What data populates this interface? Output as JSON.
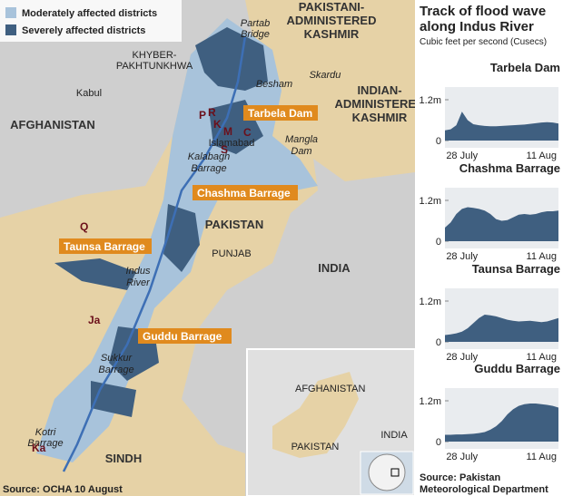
{
  "map": {
    "legend": [
      "Moderately affected districts",
      "Severely affected districts"
    ],
    "labels": [
      "PAKISTANI-",
      "ADMINISTERED",
      "KASHMIR",
      "Partab",
      "Bridge",
      "KHYBER-",
      "PAKHTUNKHWA",
      "Skardu",
      "Kabul",
      "Besham",
      "AFGHANISTAN",
      "INDIAN-",
      "ADMINISTERED",
      "KASHMIR",
      "Islamabad",
      "Mangla",
      "Dam",
      "Kalabagh",
      "Barrage",
      "PAKISTAN",
      "PUNJAB",
      "INDIA",
      "Indus",
      "River",
      "Sukkur",
      "Barrage",
      "Kotri",
      "Barrage",
      "SINDH"
    ],
    "places": [
      "P",
      "R",
      "K",
      "M",
      "C",
      "S",
      "Q",
      "Ja",
      "Ka"
    ],
    "barrages": [
      "Tarbela Dam",
      "Chashma Barrage",
      "Taunsa Barrage",
      "Guddu Barrage"
    ],
    "inset": [
      "AFGHANISTAN",
      "INDIA",
      "PAKISTAN"
    ],
    "source": "Source: OCHA 10 August"
  },
  "panel": {
    "title": [
      "Track of flood wave",
      "along Indus River"
    ],
    "subtitle": "Cubic feet per second (Cusecs)",
    "source": [
      "Source: Pakistan",
      "Meteorological Department"
    ]
  },
  "chart_data": [
    {
      "type": "area",
      "title": "Tarbela Dam",
      "color": "#3f5f80",
      "categories": [
        null,
        null,
        null,
        "28 July",
        null,
        null,
        null,
        null,
        null,
        null,
        null,
        null,
        null,
        null,
        null,
        null,
        null,
        "11 Aug",
        null,
        null,
        null
      ],
      "values": [
        300000,
        330000,
        450000,
        850000,
        600000,
        480000,
        450000,
        430000,
        420000,
        420000,
        430000,
        440000,
        450000,
        460000,
        470000,
        490000,
        510000,
        530000,
        540000,
        530000,
        500000
      ],
      "ylim": [
        0,
        1200000
      ],
      "yticks": [
        0,
        {
          "value": 1200000,
          "label": "1.2m"
        }
      ]
    },
    {
      "type": "area",
      "title": "Chashma Barrage",
      "color": "#3f5f80",
      "categories": [
        null,
        null,
        null,
        "28 July",
        null,
        null,
        null,
        null,
        null,
        null,
        null,
        null,
        null,
        null,
        null,
        null,
        null,
        "11 Aug",
        null,
        null,
        null
      ],
      "values": [
        400000,
        550000,
        800000,
        950000,
        1000000,
        980000,
        950000,
        900000,
        800000,
        650000,
        600000,
        620000,
        700000,
        780000,
        800000,
        780000,
        800000,
        850000,
        880000,
        880000,
        900000
      ],
      "ylim": [
        0,
        1200000
      ],
      "yticks": [
        0,
        {
          "value": 1200000,
          "label": "1.2m"
        }
      ]
    },
    {
      "type": "area",
      "title": "Taunsa Barrage",
      "color": "#3f5f80",
      "categories": [
        null,
        null,
        null,
        "28 July",
        null,
        null,
        null,
        null,
        null,
        null,
        null,
        null,
        null,
        null,
        null,
        null,
        null,
        "11 Aug",
        null,
        null,
        null
      ],
      "values": [
        200000,
        220000,
        250000,
        300000,
        400000,
        550000,
        700000,
        800000,
        780000,
        750000,
        700000,
        650000,
        620000,
        600000,
        610000,
        620000,
        600000,
        580000,
        600000,
        650000,
        700000
      ],
      "ylim": [
        0,
        1200000
      ],
      "yticks": [
        0,
        {
          "value": 1200000,
          "label": "1.2m"
        }
      ]
    },
    {
      "type": "area",
      "title": "Guddu Barrage",
      "color": "#3f5f80",
      "categories": [
        null,
        null,
        null,
        "28 July",
        null,
        null,
        null,
        null,
        null,
        null,
        null,
        null,
        null,
        null,
        null,
        null,
        null,
        "11 Aug",
        null,
        null,
        null
      ],
      "values": [
        200000,
        200000,
        210000,
        210000,
        220000,
        230000,
        250000,
        280000,
        350000,
        450000,
        600000,
        800000,
        950000,
        1050000,
        1100000,
        1120000,
        1120000,
        1100000,
        1080000,
        1050000,
        1000000
      ],
      "ylim": [
        0,
        1200000
      ],
      "yticks": [
        0,
        {
          "value": 1200000,
          "label": "1.2m"
        }
      ]
    }
  ]
}
